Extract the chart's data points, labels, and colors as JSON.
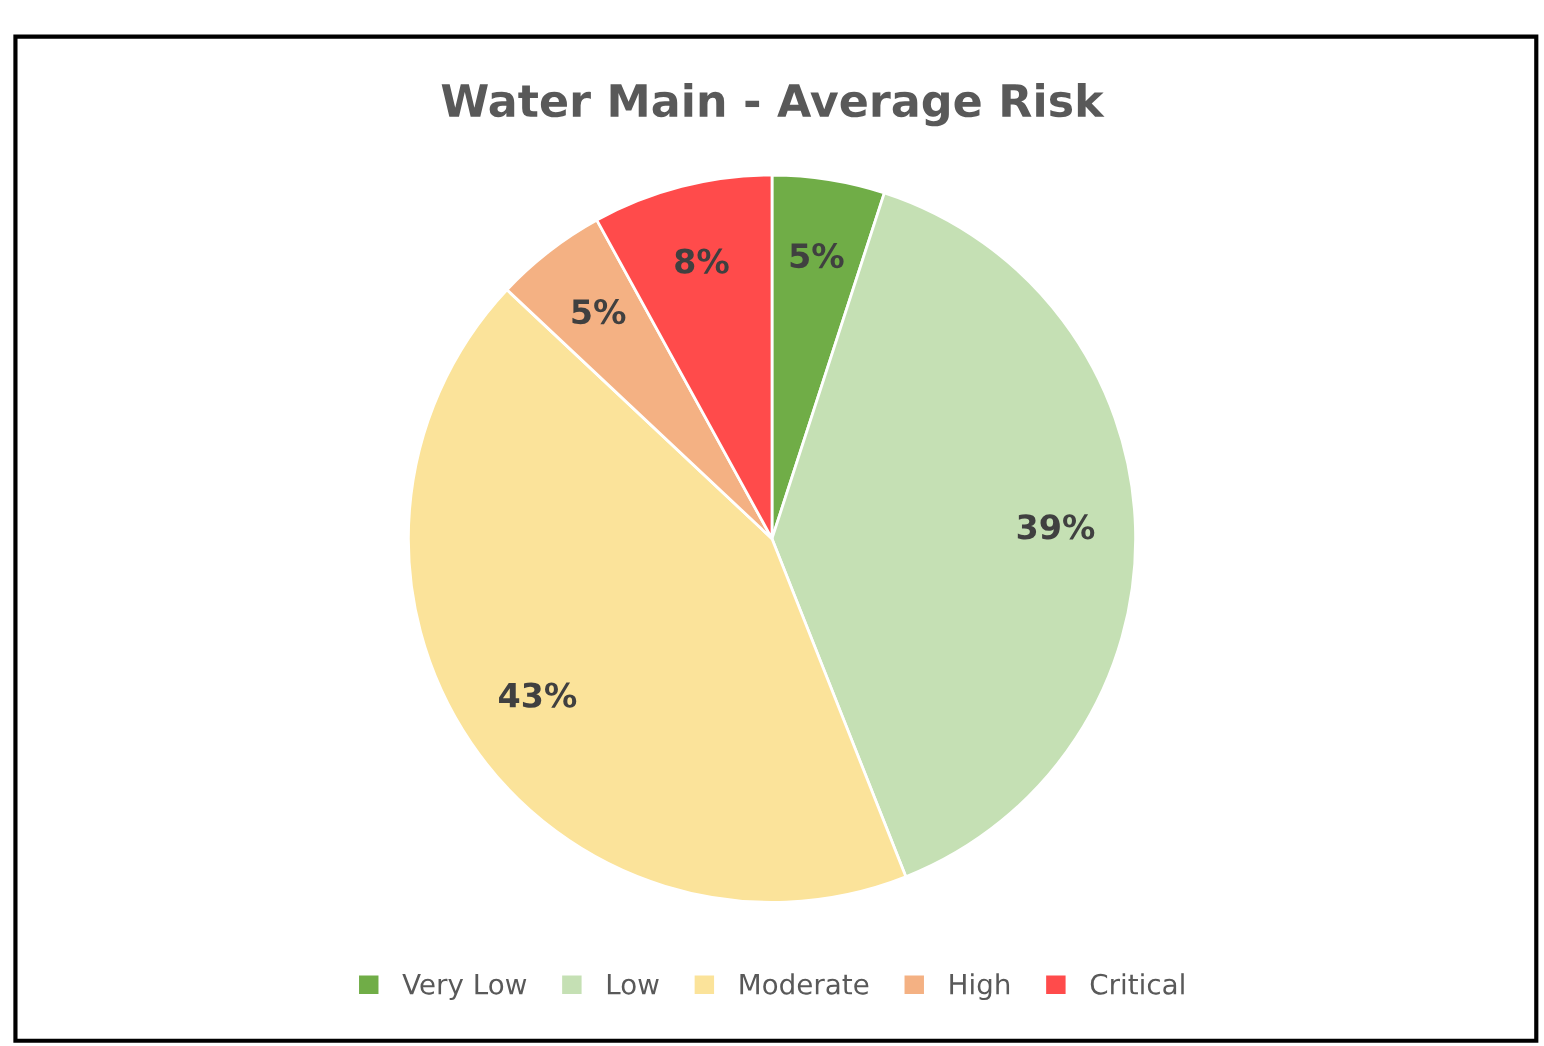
{
  "chart_data": {
    "type": "pie",
    "title": "Water Main - Average Risk",
    "categories": [
      "Very Low",
      "Low",
      "Moderate",
      "High",
      "Critical"
    ],
    "values": [
      5,
      39,
      43,
      5,
      8
    ],
    "colors": [
      "#70ad47",
      "#c5e0b4",
      "#fbe39a",
      "#f4b183",
      "#ff4b4b"
    ],
    "value_labels": [
      "5%",
      "39%",
      "43%",
      "5%",
      "8%"
    ],
    "legend": "bottom"
  }
}
